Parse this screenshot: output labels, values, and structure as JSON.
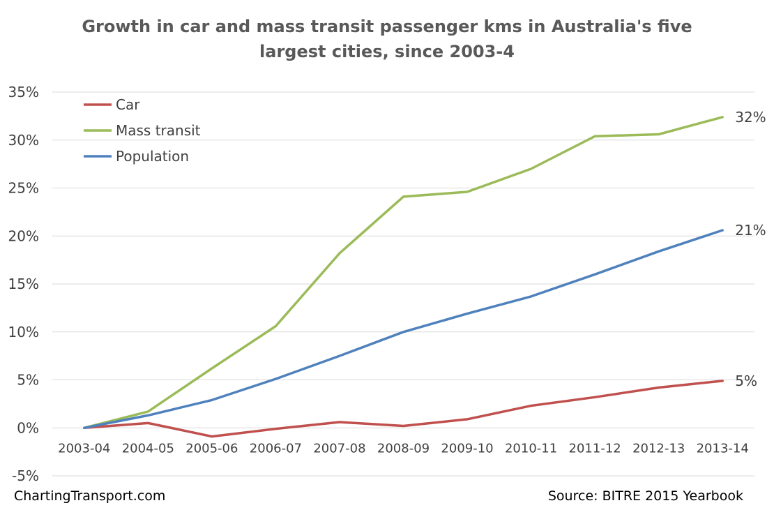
{
  "chart_data": {
    "type": "line",
    "title_lines": [
      "Growth in car and mass transit passenger kms in Australia's five",
      "largest cities, since 2003-4"
    ],
    "categories": [
      "2003-04",
      "2004-05",
      "2005-06",
      "2006-07",
      "2007-08",
      "2008-09",
      "2009-10",
      "2010-11",
      "2011-12",
      "2012-13",
      "2013-14"
    ],
    "series": [
      {
        "name": "Car",
        "color": "#c0504d",
        "values": [
          0,
          0.5,
          -0.9,
          -0.1,
          0.6,
          0.2,
          0.9,
          2.3,
          3.2,
          4.2,
          4.9
        ],
        "end_label": "5%"
      },
      {
        "name": "Mass transit",
        "color": "#9bbb59",
        "values": [
          0,
          1.7,
          6.2,
          10.6,
          18.2,
          24.1,
          24.6,
          27.0,
          30.4,
          30.6,
          32.4
        ],
        "end_label": "32%"
      },
      {
        "name": "Population",
        "color": "#4f81bd",
        "values": [
          0,
          1.3,
          2.9,
          5.1,
          7.5,
          10.0,
          11.9,
          13.7,
          16.0,
          18.4,
          20.6
        ],
        "end_label": "21%"
      }
    ],
    "yticks": [
      "-5%",
      "0%",
      "5%",
      "10%",
      "15%",
      "20%",
      "25%",
      "30%",
      "35%"
    ],
    "ylim": [
      -5,
      35
    ],
    "y_unit": "%",
    "grid": true,
    "legend_position": "top-left"
  },
  "footer": {
    "left": "ChartingTransport.com",
    "right": "Source: BITRE 2015 Yearbook"
  }
}
